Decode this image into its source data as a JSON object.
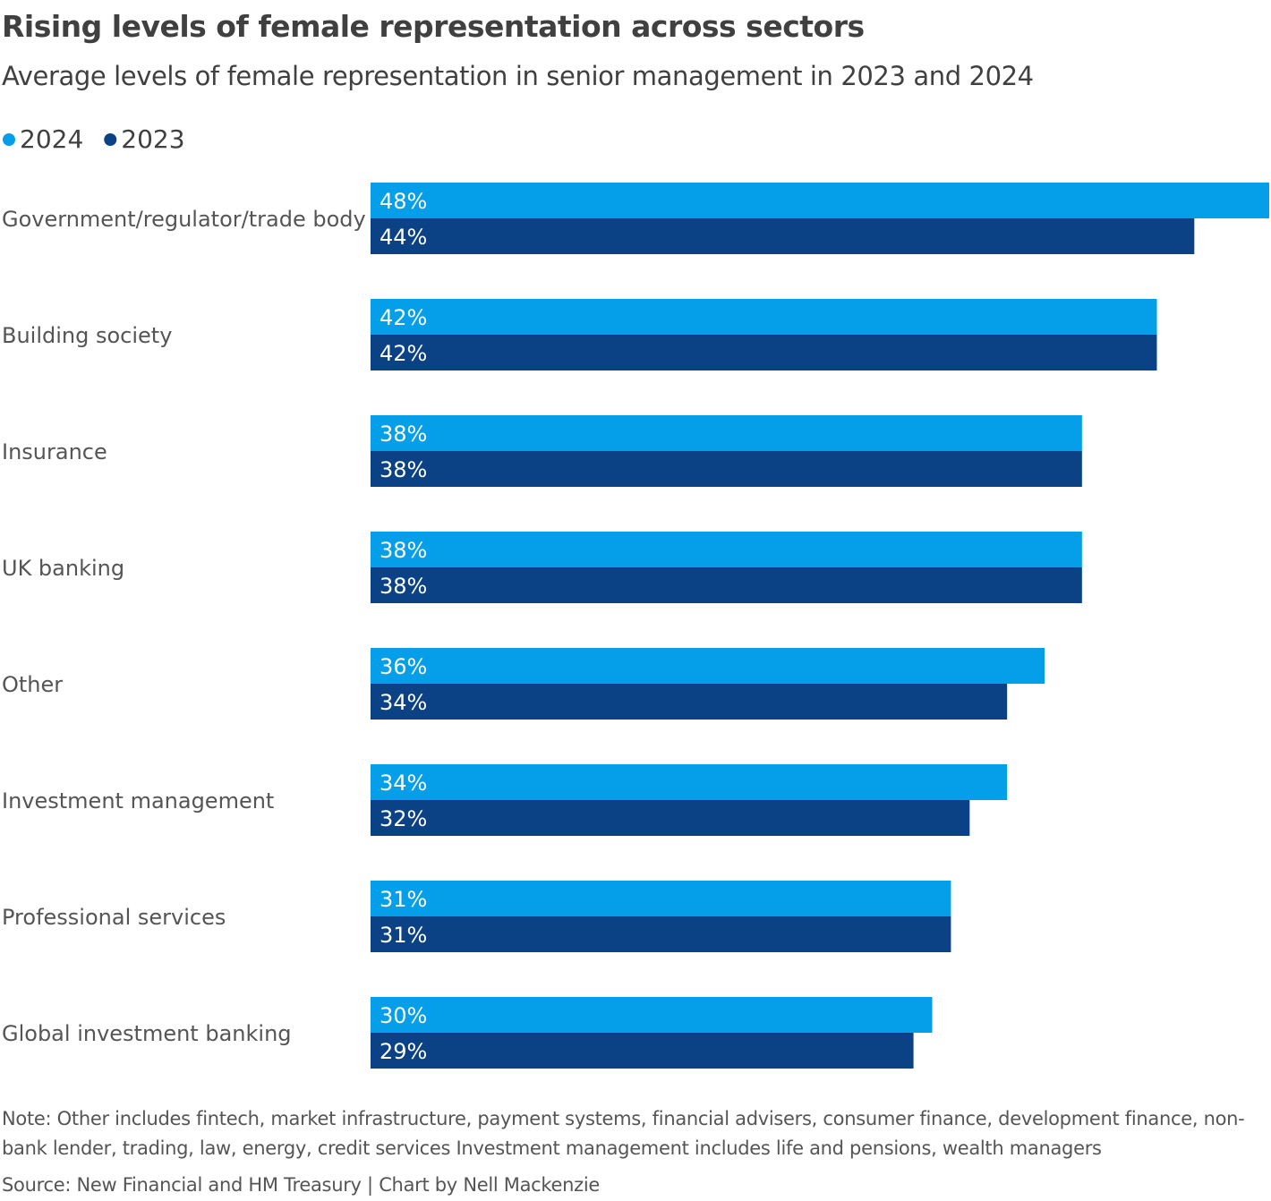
{
  "chart_data": {
    "type": "hbar",
    "title": "Rising levels of female representation across sectors",
    "subtitle": "Average levels of female representation in senior management in 2023 and 2024",
    "categories": [
      "Government/regulator/trade body",
      "Building society",
      "Insurance",
      "UK banking",
      "Other",
      "Investment management",
      "Professional services",
      "Global investment banking"
    ],
    "series": [
      {
        "name": "2024",
        "color": "#049fe8",
        "values": [
          48,
          42,
          38,
          38,
          36,
          34,
          31,
          30
        ],
        "value_labels": [
          "48%",
          "42%",
          "38%",
          "38%",
          "36%",
          "34%",
          "31%",
          "30%"
        ]
      },
      {
        "name": "2023",
        "color": "#0b4285",
        "values": [
          44,
          42,
          38,
          38,
          34,
          32,
          31,
          29
        ],
        "value_labels": [
          "44%",
          "42%",
          "38%",
          "38%",
          "34%",
          "32%",
          "31%",
          "29%"
        ]
      }
    ],
    "note": "Note: Other includes fintech, market infrastructure, payment systems, financial advisers, consumer finance, development finance, non-bank lender, trading, law, energy, credit services Investment management includes life and pensions, wealth managers",
    "source": "Source: New Financial and HM Treasury | Chart by Nell Mackenzie"
  }
}
